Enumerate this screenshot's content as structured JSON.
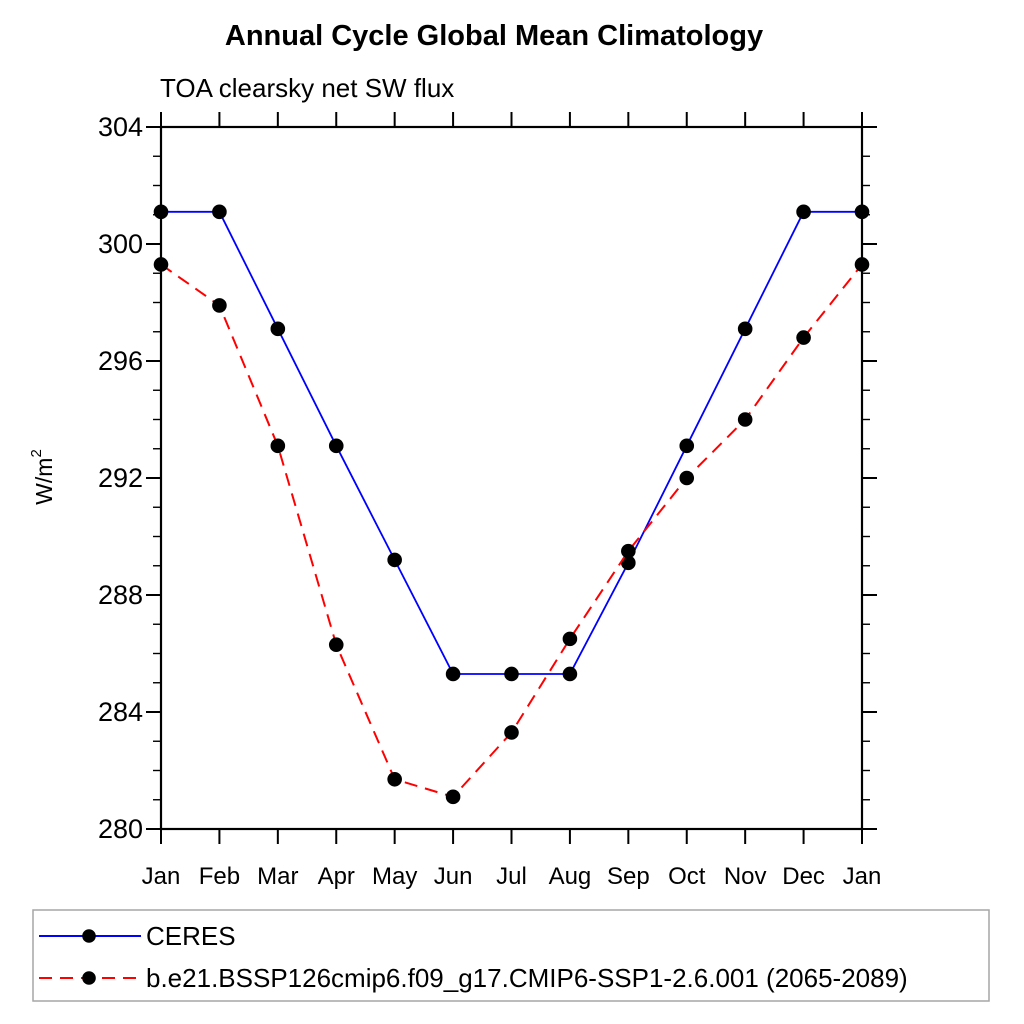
{
  "title": "Annual Cycle Global Mean Climatology",
  "subtitle": "TOA clearsky net SW flux",
  "chart_data": {
    "type": "line",
    "x_categories": [
      "Jan",
      "Feb",
      "Mar",
      "Apr",
      "May",
      "Jun",
      "Jul",
      "Aug",
      "Sep",
      "Oct",
      "Nov",
      "Dec",
      "Jan"
    ],
    "ylabel_base": "W/m",
    "ylabel_exponent": "2",
    "ylim": [
      280,
      304
    ],
    "ytick_major": [
      280,
      284,
      288,
      292,
      296,
      300,
      304
    ],
    "ytick_minor_step": 1,
    "grid": "off",
    "legend_position": "bottom",
    "axis_color": "#000000",
    "series": [
      {
        "name": "CERES",
        "color": "#0000ff",
        "line_style": "solid",
        "marker": "filled-circle",
        "marker_color": "#000000",
        "values": [
          301.1,
          301.1,
          297.1,
          293.1,
          289.2,
          285.3,
          285.3,
          285.3,
          289.1,
          293.1,
          297.1,
          301.1,
          301.1
        ]
      },
      {
        "name": "b.e21.BSSP126cmip6.f09_g17.CMIP6-SSP1-2.6.001 (2065-2089)",
        "color": "#ff0000",
        "line_style": "dashed",
        "marker": "filled-circle",
        "marker_color": "#000000",
        "values": [
          299.3,
          297.9,
          293.1,
          286.3,
          281.7,
          281.1,
          283.3,
          286.5,
          289.5,
          292.0,
          294.0,
          296.8,
          299.3
        ]
      }
    ]
  }
}
